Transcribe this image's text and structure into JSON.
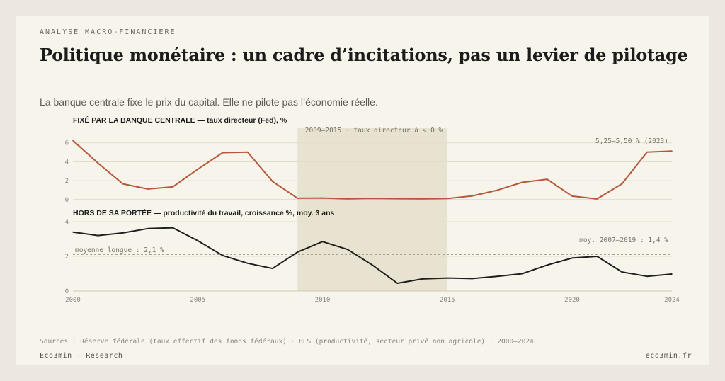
{
  "header": {
    "eyebrow": "ANALYSE MACRO-FINANCIÈRE",
    "title": "Politique monétaire : un cadre d’incitations, pas un levier de pilotage",
    "subtitle": "La banque centrale fixe le prix du capital. Elle ne pilote pas l’économie réelle."
  },
  "footer": {
    "sources": "Sources : Réserve fédérale (taux effectif des fonds fédéraux) · BLS (productivité, secteur privé non agricole) · 2000–2024",
    "brand": "Eco3min — Research",
    "site": "eco3min.fr"
  },
  "colors": {
    "rate": "#b5573b",
    "productivity": "#1e1e1c",
    "shade": "#e8e2d0",
    "grid": "#e3ddd0"
  },
  "chart_data": [
    {
      "type": "line",
      "title": "FIXÉ PAR LA BANQUE CENTRALE — taux directeur (Fed), %",
      "x": [
        2000,
        2001,
        2002,
        2003,
        2004,
        2005,
        2006,
        2007,
        2008,
        2009,
        2010,
        2011,
        2012,
        2013,
        2014,
        2015,
        2016,
        2017,
        2018,
        2019,
        2020,
        2021,
        2022,
        2023,
        2024
      ],
      "series": [
        {
          "values": [
            6.24,
            3.88,
            1.67,
            1.13,
            1.35,
            3.22,
            4.97,
            5.02,
            1.92,
            0.16,
            0.18,
            0.1,
            0.14,
            0.11,
            0.09,
            0.13,
            0.4,
            1.0,
            1.83,
            2.16,
            0.38,
            0.08,
            1.68,
            5.02,
            5.14
          ]
        }
      ],
      "ylim": [
        0,
        6.5
      ],
      "yticks": [
        "0",
        "2",
        "4",
        "6"
      ],
      "annotations": {
        "shade_label": "2009–2015 · taux directeur à ≈ 0 %",
        "end_label": "5,25–5,50 % (2023)"
      },
      "shade": [
        2009,
        2015
      ],
      "grid": true
    },
    {
      "type": "line",
      "title": "HORS DE SA PORTÉE — productivité du travail, croissance %, moy. 3 ans",
      "x": [
        2000,
        2001,
        2002,
        2003,
        2004,
        2005,
        2006,
        2007,
        2008,
        2009,
        2010,
        2011,
        2012,
        2013,
        2014,
        2015,
        2016,
        2017,
        2018,
        2019,
        2020,
        2021,
        2022,
        2023,
        2024
      ],
      "series": [
        {
          "values": [
            3.4,
            3.2,
            3.35,
            3.6,
            3.65,
            2.9,
            2.05,
            1.6,
            1.3,
            2.25,
            2.85,
            2.4,
            1.5,
            0.45,
            0.7,
            0.75,
            0.72,
            0.85,
            1.0,
            1.5,
            1.9,
            2.0,
            1.1,
            0.85,
            0.98
          ]
        }
      ],
      "ylim": [
        0,
        4
      ],
      "yticks": [
        "0",
        "2",
        "4"
      ],
      "xticks": [
        "2000",
        "2005",
        "2010",
        "2015",
        "2020",
        "2024"
      ],
      "reference": {
        "value": 2.1,
        "label": "moyenne longue : 2,1 %"
      },
      "annotations": {
        "period_label": "moy. 2007–2019 : 1,4 %"
      },
      "grid": true
    }
  ]
}
